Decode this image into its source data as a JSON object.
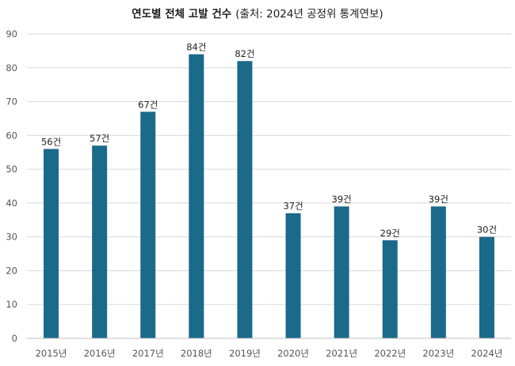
{
  "chart_data": {
    "type": "bar",
    "title": "연도별 전체 고발 건수",
    "subtitle": "(출처: 2024년 공정위 통계연보)",
    "categories": [
      "2015년",
      "2016년",
      "2017년",
      "2018년",
      "2019년",
      "2020년",
      "2021년",
      "2022년",
      "2023년",
      "2024년"
    ],
    "values": [
      56,
      57,
      67,
      84,
      82,
      37,
      39,
      29,
      39,
      30
    ],
    "data_labels": [
      "56건",
      "57건",
      "67건",
      "84건",
      "82건",
      "37건",
      "39건",
      "29건",
      "39건",
      "30건"
    ],
    "xlabel": "",
    "ylabel": "",
    "ylim": [
      0,
      90
    ],
    "yticks": [
      0,
      10,
      20,
      30,
      40,
      50,
      60,
      70,
      80,
      90
    ],
    "grid": true,
    "legend": "none",
    "bar_color": "#1b6a8a"
  }
}
